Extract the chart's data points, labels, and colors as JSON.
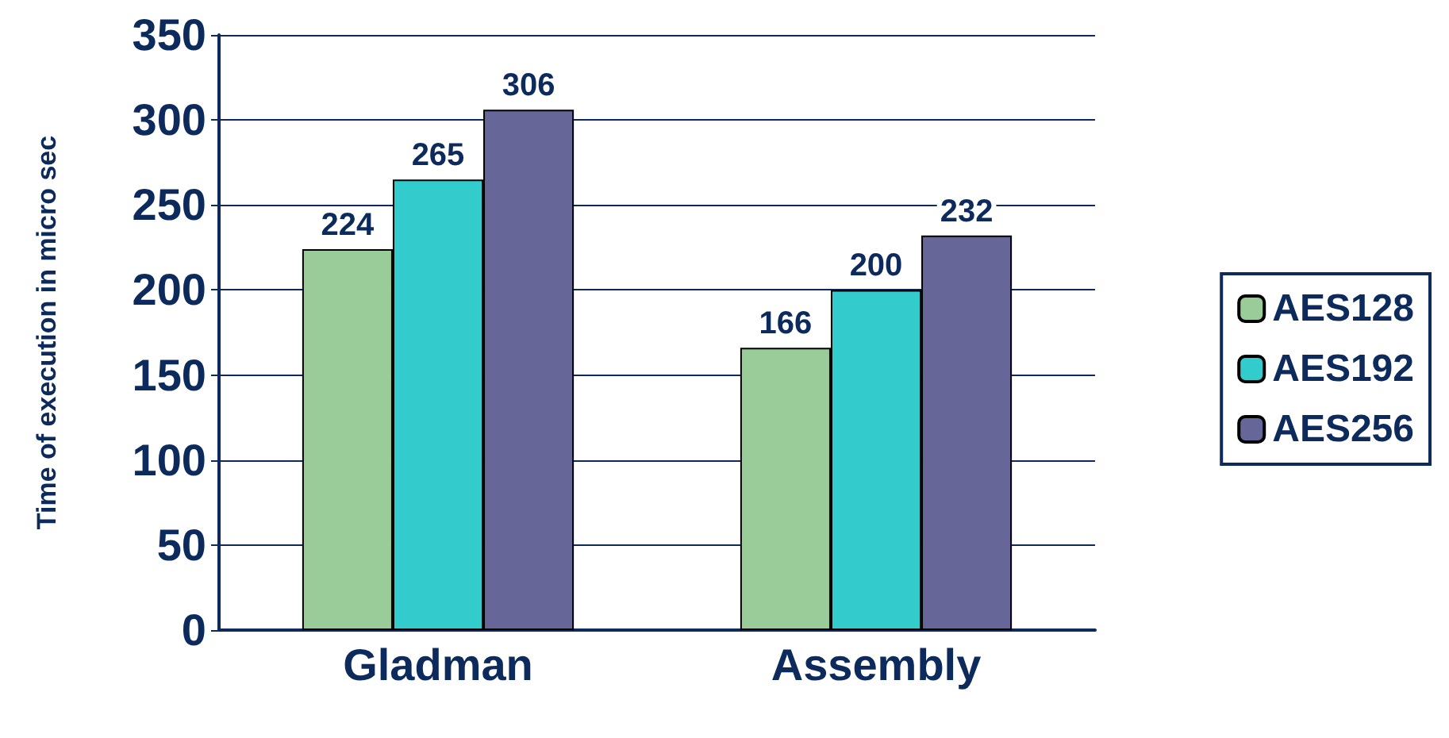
{
  "chart_data": {
    "type": "bar",
    "ylabel": "Time of execution in micro sec",
    "categories": [
      "Gladman",
      "Assembly"
    ],
    "series": [
      {
        "name": "AES128",
        "color": "#99cc99",
        "values": [
          224,
          166
        ]
      },
      {
        "name": "AES192",
        "color": "#33cccc",
        "values": [
          265,
          200
        ]
      },
      {
        "name": "AES256",
        "color": "#666699",
        "values": [
          306,
          232
        ]
      }
    ],
    "ylim": [
      0,
      350
    ],
    "yticks": [
      0,
      50,
      100,
      150,
      200,
      250,
      300,
      350
    ],
    "grid": "y",
    "legend": "right",
    "data_labels": true
  }
}
